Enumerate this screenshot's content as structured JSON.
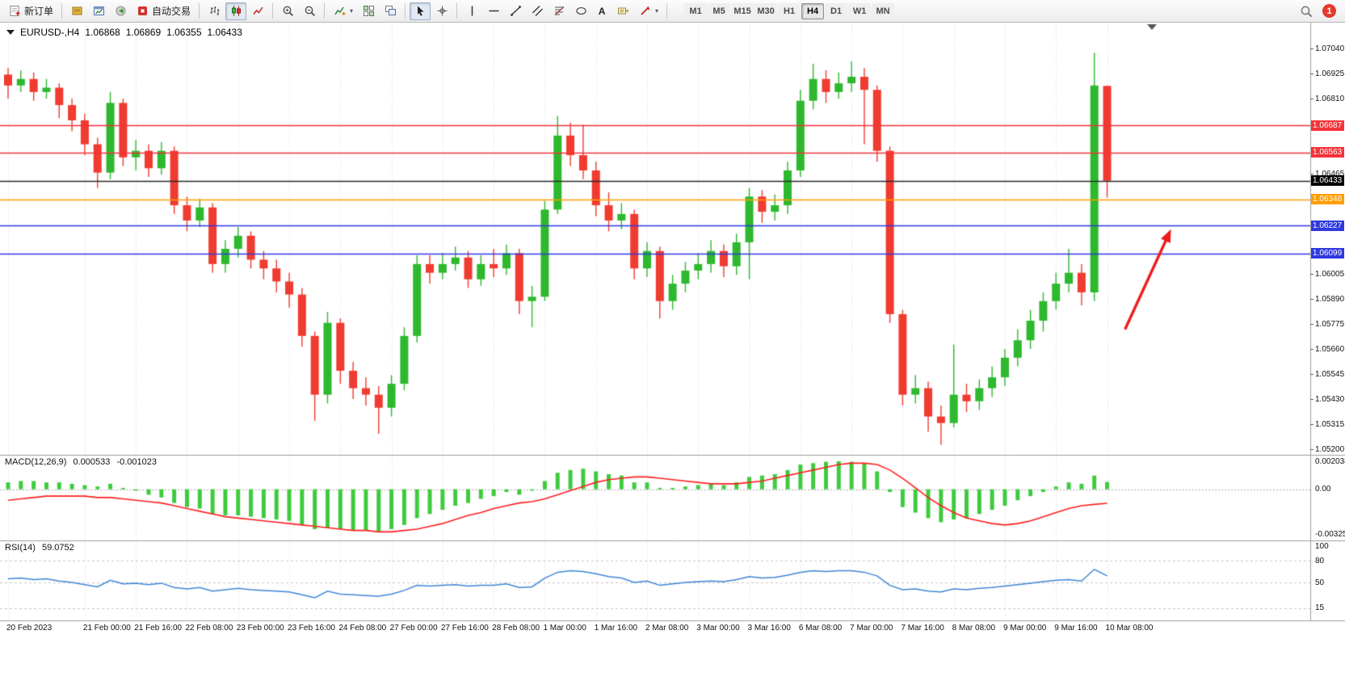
{
  "toolbar": {
    "new_order_label": "新订单",
    "auto_trading_label": "自动交易",
    "text_tool_glyph": "A",
    "timeframes": [
      "M1",
      "M5",
      "M15",
      "M30",
      "H1",
      "H4",
      "D1",
      "W1",
      "MN"
    ],
    "active_timeframe": "H4",
    "notification_count": "1",
    "icons": [
      "new-order-icon",
      "market-watch-icon",
      "new-chart-icon",
      "alerts-icon",
      "auto-trading-icon",
      "bar-chart-icon",
      "candlestick-chart-icon",
      "line-chart-icon",
      "zoom-in-icon",
      "zoom-out-icon",
      "indicators-icon",
      "tile-windows-icon",
      "cascade-windows-icon",
      "cursor-icon",
      "crosshair-icon",
      "vertical-line-icon",
      "horizontal-line-icon",
      "trendline-icon",
      "channel-icon",
      "fibonacci-icon",
      "shapes-icon",
      "text-icon",
      "text-label-icon",
      "arrows-icon",
      "search-icon"
    ]
  },
  "chart_title": {
    "symbol_period": "EURUSD-,H4",
    "open": "1.06868",
    "high": "1.06869",
    "low": "1.06355",
    "close": "1.06433"
  },
  "chart_data": {
    "type": "candlestick",
    "symbol": "EURUSD-",
    "timeframe": "H4",
    "price_axis": {
      "min": 1.052,
      "max": 1.0704,
      "tick_step": 0.00115,
      "ticks": [
        {
          "value": 1.0704,
          "label": "1.07040"
        },
        {
          "value": 1.06925,
          "label": "1.06925"
        },
        {
          "value": 1.0681,
          "label": "1.06810"
        },
        {
          "value": 1.06465,
          "label": "1.06465"
        },
        {
          "value": 1.06005,
          "label": "1.06005"
        },
        {
          "value": 1.0589,
          "label": "1.05890"
        },
        {
          "value": 1.05775,
          "label": "1.05775"
        },
        {
          "value": 1.0566,
          "label": "1.05660"
        },
        {
          "value": 1.05545,
          "label": "1.05545"
        },
        {
          "value": 1.0543,
          "label": "1.05430"
        },
        {
          "value": 1.05315,
          "label": "1.05315"
        },
        {
          "value": 1.052,
          "label": "1.05200"
        }
      ]
    },
    "price_tags": [
      {
        "value": 1.06687,
        "label": "1.06687",
        "color": "#f3333a"
      },
      {
        "value": 1.06563,
        "label": "1.06563",
        "color": "#f3333a"
      },
      {
        "value": 1.06433,
        "label": "1.06433",
        "color": "#000000"
      },
      {
        "value": 1.06348,
        "label": "1.06348",
        "color": "#ff9d00"
      },
      {
        "value": 1.06227,
        "label": "1.06227",
        "color": "#2f39df"
      },
      {
        "value": 1.06099,
        "label": "1.06099",
        "color": "#2f39df"
      }
    ],
    "horizontal_lines": [
      {
        "price": 1.06687,
        "color": "#f3333a"
      },
      {
        "price": 1.06563,
        "color": "#f3333a"
      },
      {
        "price": 1.06433,
        "color": "#2b2b2b"
      },
      {
        "price": 1.06348,
        "color": "#ff9d00"
      },
      {
        "price": 1.06227,
        "color": "#2f39df"
      },
      {
        "price": 1.06099,
        "color": "#2f39df"
      }
    ],
    "colors": {
      "bull": "#2eb82e",
      "bear": "#f03b30",
      "grid": "#dcdcdc",
      "macd_histogram": "#3ecb3e",
      "macd_signal": "#ff1f1f",
      "rsi_line": "#3f85d6",
      "annotation_arrow": "#ee1c1c"
    },
    "candles": [
      [
        1.0692,
        1.0695,
        1.0681,
        1.0687
      ],
      [
        1.0687,
        1.0694,
        1.0684,
        1.069
      ],
      [
        1.069,
        1.0693,
        1.068,
        1.0684
      ],
      [
        1.0684,
        1.069,
        1.0681,
        1.0686
      ],
      [
        1.0686,
        1.0688,
        1.0672,
        1.0678
      ],
      [
        1.0678,
        1.0681,
        1.0666,
        1.0671
      ],
      [
        1.0671,
        1.0674,
        1.0655,
        1.066
      ],
      [
        1.066,
        1.0663,
        1.064,
        1.0647
      ],
      [
        1.0647,
        1.0684,
        1.0644,
        1.0679
      ],
      [
        1.0679,
        1.0681,
        1.065,
        1.0654
      ],
      [
        1.0654,
        1.0662,
        1.0648,
        1.0657
      ],
      [
        1.0657,
        1.066,
        1.0645,
        1.0649
      ],
      [
        1.0649,
        1.0661,
        1.0646,
        1.0657
      ],
      [
        1.0657,
        1.0659,
        1.0628,
        1.0632
      ],
      [
        1.0632,
        1.0636,
        1.062,
        1.0625
      ],
      [
        1.0625,
        1.0635,
        1.0622,
        1.0631
      ],
      [
        1.0631,
        1.0633,
        1.0601,
        1.0605
      ],
      [
        1.0605,
        1.0616,
        1.0601,
        1.0612
      ],
      [
        1.0612,
        1.0622,
        1.0608,
        1.0618
      ],
      [
        1.0618,
        1.062,
        1.0603,
        1.0607
      ],
      [
        1.0607,
        1.0611,
        1.0598,
        1.0603
      ],
      [
        1.0603,
        1.0607,
        1.0592,
        1.0597
      ],
      [
        1.0597,
        1.0601,
        1.0585,
        1.0591
      ],
      [
        1.0591,
        1.0594,
        1.0567,
        1.0572
      ],
      [
        1.0572,
        1.0574,
        1.0533,
        1.0545
      ],
      [
        1.0545,
        1.0583,
        1.0541,
        1.0578
      ],
      [
        1.0578,
        1.058,
        1.055,
        1.0556
      ],
      [
        1.0556,
        1.056,
        1.0543,
        1.0548
      ],
      [
        1.0548,
        1.0553,
        1.054,
        1.0545
      ],
      [
        1.0545,
        1.0549,
        1.0527,
        1.0539
      ],
      [
        1.0539,
        1.0554,
        1.0535,
        1.055
      ],
      [
        1.055,
        1.0576,
        1.0547,
        1.0572
      ],
      [
        1.0572,
        1.0609,
        1.0569,
        1.0605
      ],
      [
        1.0605,
        1.0609,
        1.0596,
        1.0601
      ],
      [
        1.0601,
        1.061,
        1.0598,
        1.0605
      ],
      [
        1.0605,
        1.0613,
        1.0602,
        1.0608
      ],
      [
        1.0608,
        1.0611,
        1.0594,
        1.0598
      ],
      [
        1.0598,
        1.0609,
        1.0595,
        1.0605
      ],
      [
        1.0605,
        1.0612,
        1.0599,
        1.0603
      ],
      [
        1.0603,
        1.0614,
        1.06,
        1.061
      ],
      [
        1.061,
        1.0612,
        1.0582,
        1.0588
      ],
      [
        1.0588,
        1.0595,
        1.0576,
        1.059
      ],
      [
        1.059,
        1.0634,
        1.0588,
        1.063
      ],
      [
        1.063,
        1.0673,
        1.0628,
        1.0664
      ],
      [
        1.0664,
        1.067,
        1.065,
        1.0655
      ],
      [
        1.0655,
        1.0669,
        1.0644,
        1.0648
      ],
      [
        1.0648,
        1.0652,
        1.0627,
        1.0632
      ],
      [
        1.0632,
        1.0638,
        1.062,
        1.0625
      ],
      [
        1.0625,
        1.0633,
        1.0621,
        1.0628
      ],
      [
        1.0628,
        1.063,
        1.0598,
        1.0603
      ],
      [
        1.0603,
        1.0615,
        1.0599,
        1.0611
      ],
      [
        1.0611,
        1.0613,
        1.058,
        1.0588
      ],
      [
        1.0588,
        1.06,
        1.0584,
        1.0596
      ],
      [
        1.0596,
        1.0606,
        1.0592,
        1.0602
      ],
      [
        1.0602,
        1.061,
        1.0598,
        1.0605
      ],
      [
        1.0605,
        1.0616,
        1.0601,
        1.0611
      ],
      [
        1.0611,
        1.0614,
        1.0599,
        1.0604
      ],
      [
        1.0604,
        1.0619,
        1.06,
        1.0615
      ],
      [
        1.0615,
        1.064,
        1.0598,
        1.0636
      ],
      [
        1.0636,
        1.0639,
        1.0624,
        1.0629
      ],
      [
        1.0629,
        1.0637,
        1.0625,
        1.0632
      ],
      [
        1.0632,
        1.0652,
        1.0628,
        1.0648
      ],
      [
        1.0648,
        1.0685,
        1.0645,
        1.068
      ],
      [
        1.068,
        1.0697,
        1.0676,
        1.069
      ],
      [
        1.069,
        1.0694,
        1.0679,
        1.0684
      ],
      [
        1.0684,
        1.0693,
        1.0681,
        1.0688
      ],
      [
        1.0688,
        1.0698,
        1.0684,
        1.0691
      ],
      [
        1.0691,
        1.0695,
        1.066,
        1.0685
      ],
      [
        1.0685,
        1.0687,
        1.0652,
        1.0657
      ],
      [
        1.0657,
        1.0659,
        1.0578,
        1.0582
      ],
      [
        1.0582,
        1.0584,
        1.054,
        1.0545
      ],
      [
        1.0545,
        1.0554,
        1.0541,
        1.0548
      ],
      [
        1.0548,
        1.0551,
        1.0528,
        1.0535
      ],
      [
        1.0535,
        1.054,
        1.0522,
        1.0532
      ],
      [
        1.0532,
        1.0568,
        1.053,
        1.0545
      ],
      [
        1.0545,
        1.055,
        1.0537,
        1.0542
      ],
      [
        1.0542,
        1.0552,
        1.0538,
        1.0548
      ],
      [
        1.0548,
        1.0558,
        1.0544,
        1.0553
      ],
      [
        1.0553,
        1.0566,
        1.0549,
        1.0562
      ],
      [
        1.0562,
        1.0575,
        1.0558,
        1.057
      ],
      [
        1.057,
        1.0584,
        1.0566,
        1.0579
      ],
      [
        1.0579,
        1.0592,
        1.0574,
        1.0588
      ],
      [
        1.0588,
        1.0601,
        1.0584,
        1.0596
      ],
      [
        1.0596,
        1.0612,
        1.0592,
        1.0601
      ],
      [
        1.0601,
        1.0605,
        1.0586,
        1.0592
      ],
      [
        1.0592,
        1.0702,
        1.0588,
        1.0687
      ],
      [
        1.06868,
        1.06869,
        1.06355,
        1.06433
      ]
    ],
    "time_labels": [
      {
        "bar": 0,
        "label": "20 Feb 2023"
      },
      {
        "bar": 6,
        "label": "21 Feb 00:00"
      },
      {
        "bar": 10,
        "label": "21 Feb 16:00"
      },
      {
        "bar": 14,
        "label": "22 Feb 08:00"
      },
      {
        "bar": 18,
        "label": "23 Feb 00:00"
      },
      {
        "bar": 22,
        "label": "23 Feb 16:00"
      },
      {
        "bar": 26,
        "label": "24 Feb 08:00"
      },
      {
        "bar": 30,
        "label": "27 Feb 00:00"
      },
      {
        "bar": 34,
        "label": "27 Feb 16:00"
      },
      {
        "bar": 38,
        "label": "28 Feb 08:00"
      },
      {
        "bar": 42,
        "label": "1 Mar 00:00"
      },
      {
        "bar": 46,
        "label": "1 Mar 16:00"
      },
      {
        "bar": 50,
        "label": "2 Mar 08:00"
      },
      {
        "bar": 54,
        "label": "3 Mar 00:00"
      },
      {
        "bar": 58,
        "label": "3 Mar 16:00"
      },
      {
        "bar": 62,
        "label": "6 Mar 08:00"
      },
      {
        "bar": 66,
        "label": "7 Mar 00:00"
      },
      {
        "bar": 70,
        "label": "7 Mar 16:00"
      },
      {
        "bar": 74,
        "label": "8 Mar 08:00"
      },
      {
        "bar": 78,
        "label": "9 Mar 00:00"
      },
      {
        "bar": 82,
        "label": "9 Mar 16:00"
      },
      {
        "bar": 86,
        "label": "10 Mar 08:00"
      }
    ],
    "macd": {
      "name": "MACD(12,26,9)",
      "value_main": "0.000533",
      "value_signal": "-0.001023",
      "scale": [
        {
          "value": 0.002038,
          "label": "0.002038"
        },
        {
          "value": 0,
          "label": "0.00"
        },
        {
          "value": -0.003256,
          "label": "-0.003256"
        }
      ],
      "histogram": [
        0.0005,
        0.0006,
        0.0006,
        0.0005,
        0.0005,
        0.0004,
        0.0003,
        0.0002,
        0.0004,
        0.0001,
        -0.0001,
        -0.0004,
        -0.0006,
        -0.001,
        -0.0013,
        -0.0014,
        -0.0018,
        -0.0019,
        -0.0019,
        -0.002,
        -0.0021,
        -0.0022,
        -0.0023,
        -0.0026,
        -0.0029,
        -0.0028,
        -0.0029,
        -0.003,
        -0.003,
        -0.0031,
        -0.0029,
        -0.0026,
        -0.0021,
        -0.0018,
        -0.0015,
        -0.0012,
        -0.001,
        -0.0007,
        -0.0005,
        -0.0002,
        -0.0004,
        -0.0001,
        0.0006,
        0.0012,
        0.0014,
        0.0015,
        0.0013,
        0.0011,
        0.001,
        0.0005,
        0.0005,
        0.0001,
        0.0001,
        0.0002,
        0.0003,
        0.0004,
        0.0003,
        0.0005,
        0.0009,
        0.001,
        0.0011,
        0.0014,
        0.0018,
        0.0019,
        0.002,
        0.00204,
        0.002,
        0.0019,
        0.0013,
        -0.0002,
        -0.0013,
        -0.0017,
        -0.0021,
        -0.0024,
        -0.0022,
        -0.0021,
        -0.0018,
        -0.0015,
        -0.0012,
        -0.0008,
        -0.0005,
        -0.0002,
        0.0002,
        0.0005,
        0.0004,
        0.001,
        0.000533
      ],
      "signal": [
        -0.0008,
        -0.0007,
        -0.0006,
        -0.0005,
        -0.0005,
        -0.0005,
        -0.0005,
        -0.0006,
        -0.0006,
        -0.0007,
        -0.0008,
        -0.0009,
        -0.001,
        -0.0012,
        -0.0014,
        -0.0016,
        -0.0018,
        -0.002,
        -0.0021,
        -0.0022,
        -0.0023,
        -0.0024,
        -0.0025,
        -0.0026,
        -0.0027,
        -0.0028,
        -0.0029,
        -0.003,
        -0.003,
        -0.0031,
        -0.0031,
        -0.003,
        -0.0029,
        -0.0027,
        -0.0025,
        -0.0022,
        -0.0019,
        -0.0017,
        -0.0014,
        -0.0012,
        -0.001,
        -0.0009,
        -0.0007,
        -0.0004,
        -0.0001,
        0.0002,
        0.0005,
        0.0007,
        0.0008,
        0.0009,
        0.0009,
        0.0008,
        0.0007,
        0.0006,
        0.0005,
        0.0004,
        0.0004,
        0.0004,
        0.0005,
        0.0006,
        0.0008,
        0.001,
        0.0012,
        0.0014,
        0.0016,
        0.0018,
        0.0019,
        0.0019,
        0.0018,
        0.0014,
        0.0008,
        0.0001,
        -0.0006,
        -0.0012,
        -0.0017,
        -0.0021,
        -0.0023,
        -0.0025,
        -0.0026,
        -0.0025,
        -0.0023,
        -0.002,
        -0.0017,
        -0.0014,
        -0.0012,
        -0.0011,
        -0.001023
      ]
    },
    "rsi": {
      "name": "RSI(14)",
      "value": "59.0752",
      "levels": [
        80,
        50,
        15
      ],
      "scale": [
        {
          "value": 100,
          "label": "100"
        },
        {
          "value": 80,
          "label": "80"
        },
        {
          "value": 50,
          "label": "50"
        },
        {
          "value": 15,
          "label": "15"
        }
      ],
      "values": [
        55,
        56,
        54,
        55,
        52,
        50,
        47,
        44,
        53,
        48,
        49,
        47,
        49,
        43,
        41,
        43,
        38,
        40,
        42,
        40,
        39,
        38,
        37,
        33,
        29,
        38,
        34,
        33,
        32,
        31,
        34,
        39,
        46,
        45,
        46,
        47,
        45,
        46,
        46,
        48,
        43,
        44,
        56,
        64,
        66,
        65,
        62,
        58,
        56,
        50,
        52,
        46,
        48,
        50,
        51,
        52,
        51,
        54,
        58,
        56,
        57,
        60,
        64,
        66,
        65,
        66,
        66,
        64,
        59,
        46,
        40,
        41,
        38,
        37,
        41,
        40,
        42,
        43,
        45,
        47,
        49,
        51,
        53,
        54,
        52,
        68,
        59.08
      ]
    },
    "annotation_arrow": {
      "bar_from": 87.4,
      "price_from": 1.0575,
      "bar_to": 91.0,
      "price_to": 1.0621
    }
  }
}
